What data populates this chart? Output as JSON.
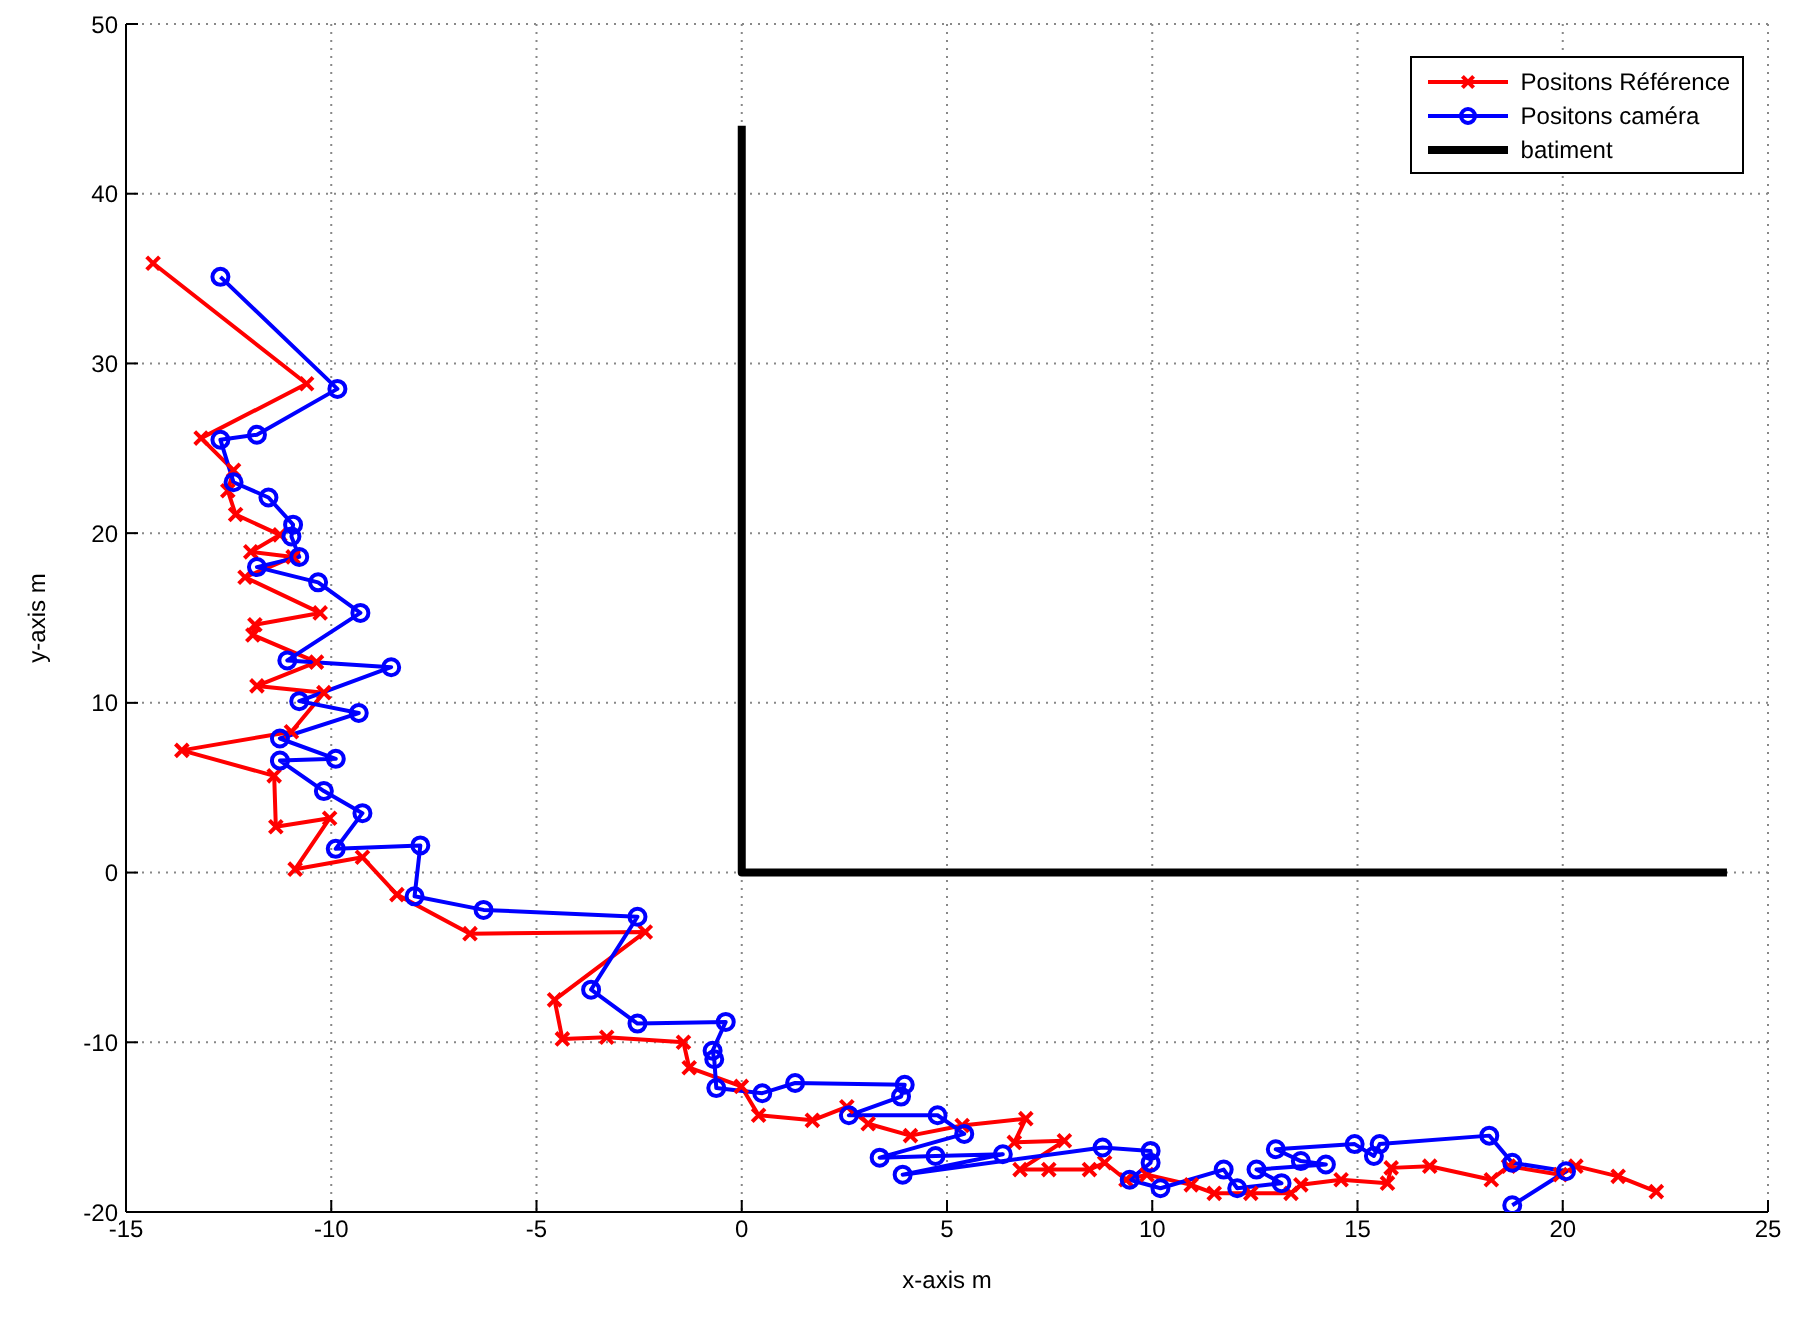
{
  "chart_data": {
    "type": "line",
    "xlabel": "x-axis m",
    "ylabel": "y-axis m",
    "xlim": [
      -15,
      25
    ],
    "xticks": [
      -15,
      -10,
      -5,
      0,
      5,
      10,
      15,
      20,
      25
    ],
    "ylim": [
      -20,
      50
    ],
    "yticks": [
      -20,
      -10,
      0,
      10,
      20,
      30,
      40,
      50
    ],
    "grid": true,
    "legend": "top right",
    "line_style": "solid",
    "series": [
      {
        "name": "Positons Référence",
        "color": "#ff0000",
        "marker": "cross",
        "x": [
          -14.34,
          -10.6,
          -13.17,
          -12.38,
          -12.52,
          -12.33,
          -11.25,
          -11.96,
          -10.93,
          -12.1,
          -10.27,
          -11.86,
          -11.91,
          -10.36,
          -11.81,
          -10.18,
          -10.97,
          -13.64,
          -11.39,
          -11.35,
          -10.04,
          -10.88,
          -9.24,
          -8.4,
          -6.62,
          -2.35,
          -4.56,
          -4.37,
          -3.29,
          -1.42,
          -1.28,
          -0.01,
          0.41,
          1.72,
          2.56,
          3.08,
          4.11,
          5.37,
          6.92,
          6.64,
          7.86,
          6.78,
          7.48,
          8.47,
          8.84,
          9.36,
          9.87,
          10.95,
          11.51,
          12.4,
          13.38,
          13.62,
          14.6,
          15.73,
          15.82,
          16.76,
          18.26,
          18.68,
          19.94,
          20.32,
          21.35,
          22.28
        ],
        "values": [
          35.9,
          28.8,
          25.6,
          23.7,
          22.5,
          21.1,
          19.9,
          18.9,
          18.6,
          17.4,
          15.3,
          14.6,
          14.0,
          12.4,
          11.0,
          10.6,
          8.3,
          7.2,
          5.7,
          2.7,
          3.2,
          0.2,
          0.9,
          -1.3,
          -3.6,
          -3.5,
          -7.5,
          -9.8,
          -9.7,
          -10.0,
          -11.5,
          -12.6,
          -14.3,
          -14.6,
          -13.8,
          -14.8,
          -15.5,
          -14.9,
          -14.5,
          -15.9,
          -15.8,
          -17.5,
          -17.5,
          -17.5,
          -17.1,
          -18.1,
          -17.8,
          -18.4,
          -18.9,
          -18.9,
          -18.9,
          -18.4,
          -18.1,
          -18.3,
          -17.4,
          -17.3,
          -18.1,
          -17.3,
          -17.8,
          -17.3,
          -17.9,
          -18.8
        ]
      },
      {
        "name": "Positons caméra",
        "color": "#0000ff",
        "marker": "circle",
        "x": [
          -12.7,
          -9.85,
          -11.81,
          -12.7,
          -12.38,
          -11.53,
          -10.93,
          -10.97,
          -10.78,
          -11.81,
          -10.32,
          -9.29,
          -11.07,
          -8.54,
          -10.78,
          -9.33,
          -11.25,
          -9.89,
          -11.25,
          -10.18,
          -9.24,
          -9.89,
          -7.83,
          -7.97,
          -6.29,
          -2.54,
          -3.67,
          -2.54,
          -0.39,
          -0.71,
          -0.67,
          -0.62,
          0.5,
          1.3,
          3.97,
          3.88,
          2.61,
          4.77,
          5.42,
          3.36,
          4.72,
          6.36,
          3.92,
          8.79,
          9.96,
          9.96,
          9.45,
          10.2,
          11.74,
          12.07,
          13.15,
          12.54,
          14.23,
          13.62,
          13.01,
          14.93,
          15.4,
          15.54,
          18.21,
          18.77,
          20.08,
          18.77
        ],
        "values": [
          35.1,
          28.5,
          25.8,
          25.5,
          23.0,
          22.1,
          20.5,
          19.8,
          18.6,
          18.0,
          17.1,
          15.3,
          12.5,
          12.1,
          10.1,
          9.4,
          7.9,
          6.7,
          6.6,
          4.8,
          3.5,
          1.4,
          1.6,
          -1.4,
          -2.2,
          -2.6,
          -6.9,
          -8.9,
          -8.8,
          -10.5,
          -11.0,
          -12.7,
          -13.0,
          -12.4,
          -12.5,
          -13.2,
          -14.3,
          -14.3,
          -15.4,
          -16.8,
          -16.7,
          -16.6,
          -17.8,
          -16.2,
          -16.4,
          -17.1,
          -18.1,
          -18.6,
          -17.5,
          -18.6,
          -18.3,
          -17.5,
          -17.2,
          -17.0,
          -16.3,
          -16.0,
          -16.7,
          -16.0,
          -15.5,
          -17.1,
          -17.6,
          -19.6
        ]
      },
      {
        "name": "batiment",
        "color": "#000000",
        "marker": "none",
        "x": [
          0,
          0,
          24
        ],
        "values": [
          44,
          0,
          0
        ]
      }
    ]
  }
}
